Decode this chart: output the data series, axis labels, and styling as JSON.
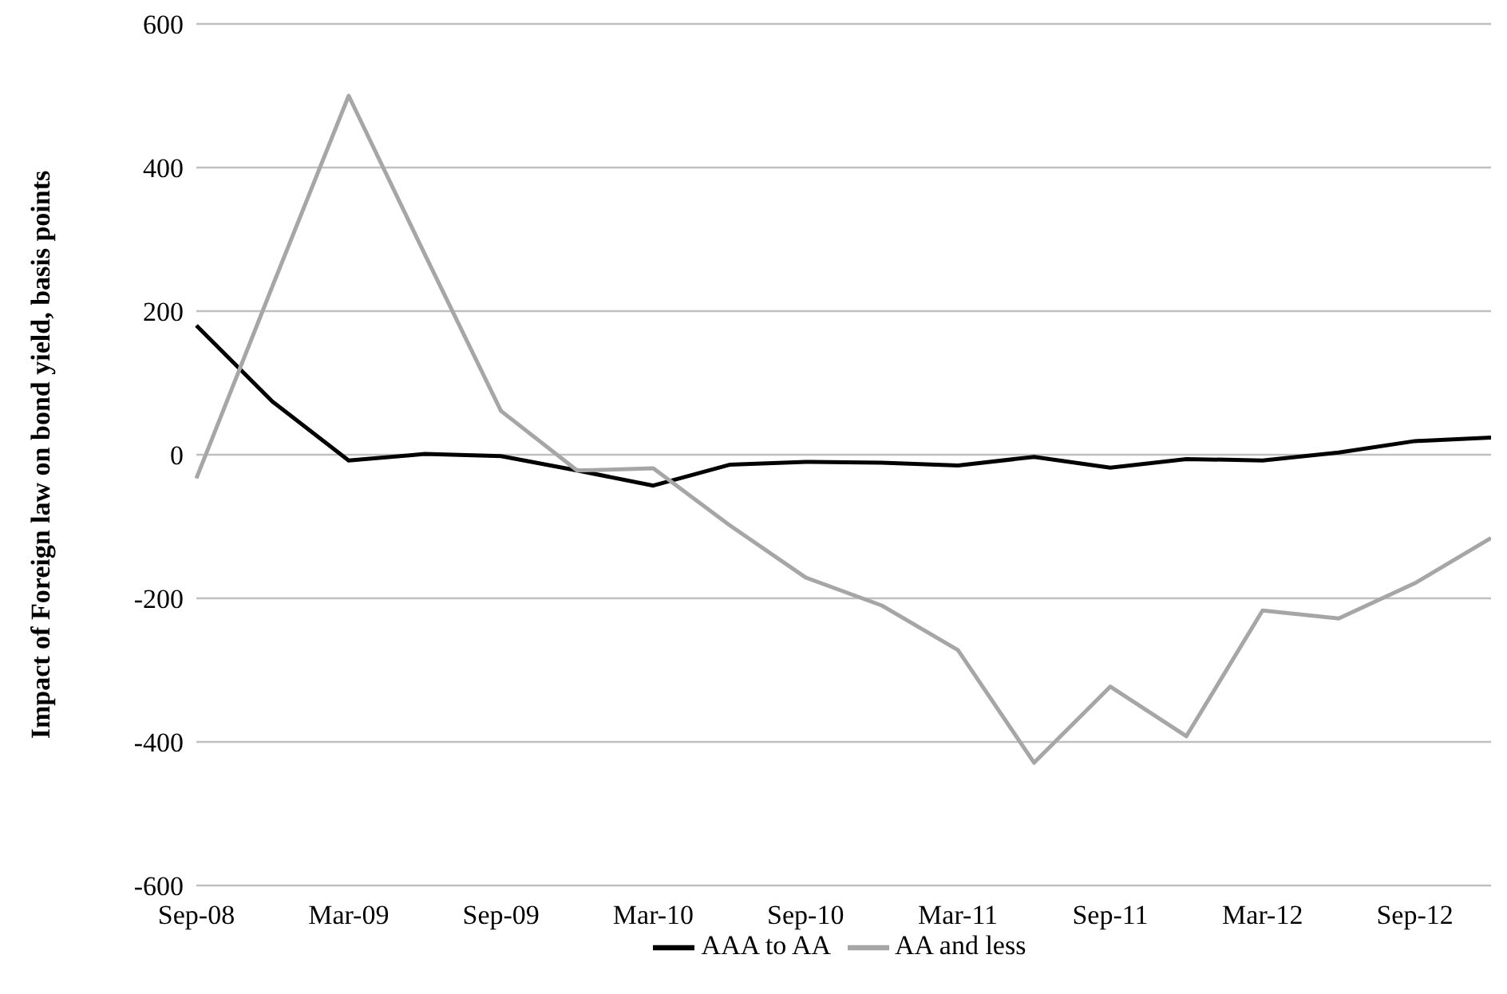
{
  "chart_data": {
    "type": "line",
    "ylabel": "Impact of Foreign law on bond yield, basis points",
    "categories": [
      "Sep-08",
      null,
      "Mar-09",
      null,
      "Sep-09",
      null,
      "Mar-10",
      null,
      "Sep-10",
      null,
      "Mar-11",
      null,
      "Sep-11",
      null,
      "Mar-12",
      null,
      "Sep-12",
      null
    ],
    "series": [
      {
        "name": "AAA to AA",
        "color": "#000000",
        "values": [
          180,
          74,
          -8,
          1,
          -2,
          -22,
          -43,
          -14,
          -10,
          -11,
          -15,
          -3,
          -18,
          -6,
          -8,
          3,
          19,
          24
        ]
      },
      {
        "name": "AA and less",
        "color": "#a6a6a6",
        "values": [
          -33,
          235,
          500,
          279,
          61,
          -22,
          -19,
          -98,
          -171,
          -210,
          -272,
          -429,
          -323,
          -392,
          -217,
          -228,
          -179,
          -116
        ]
      }
    ],
    "ylim": [
      -600,
      600
    ],
    "yticks": [
      -600,
      -400,
      -200,
      0,
      200,
      400,
      600
    ],
    "grid": "y",
    "legend": "bottom",
    "marker": "none",
    "line_style": "solid"
  }
}
